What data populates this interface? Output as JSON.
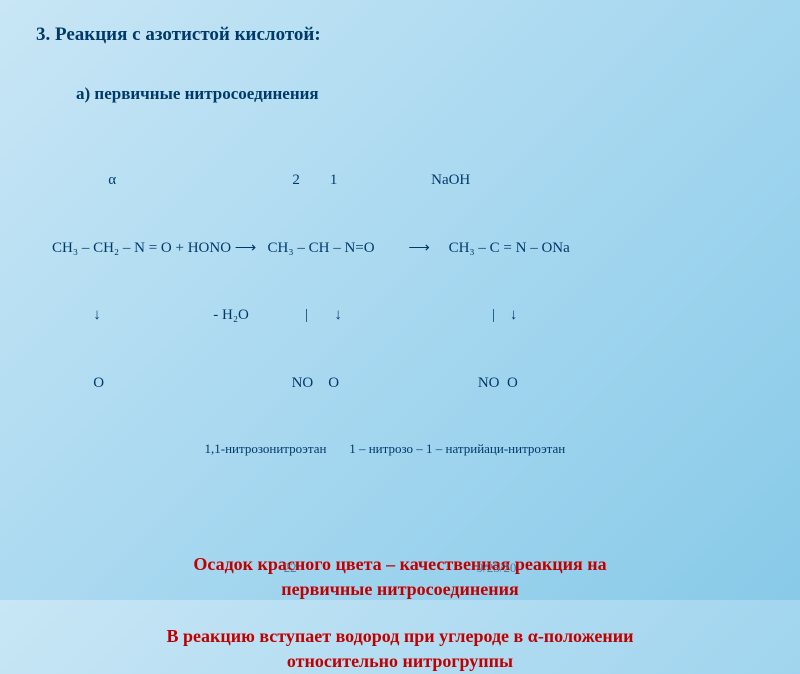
{
  "title": "3. Реакция с азотистой кислотой:",
  "subtitle": "а) первичные нитросоединения",
  "reaction": {
    "line1": "               α                                               2        1                         NaOH",
    "line2": "CH₃ – CH₂ – N = O + HONO ⟶   CH₃ – CH – N=O         ⟶     CH₃ – C = N – ONa",
    "line3": "           ↓                              - H₂O               |       ↓                                        |    ↓",
    "line4": "           O                                                  NO    O                                     NO  O",
    "labels": "                                          1,1-нитрозонитроэтан       1 – нитрозо – 1 – натрийаци-нитроэтан"
  },
  "highlight1_a": "Осадок красного цвета –  качественная реакция на",
  "highlight1_b": "первичные нитросоединения",
  "highlight2_a": "В реакцию вступает водород   при углероде в α-положении",
  "highlight2_b": "относительно нитрогруппы",
  "page_number": "22",
  "date": "9/25/20",
  "colors": {
    "text_primary": "#003a6b",
    "text_highlight": "#c00000",
    "footer": "#5a7a94",
    "bg_start": "#c8e6f5",
    "bg_end": "#88cae8"
  }
}
